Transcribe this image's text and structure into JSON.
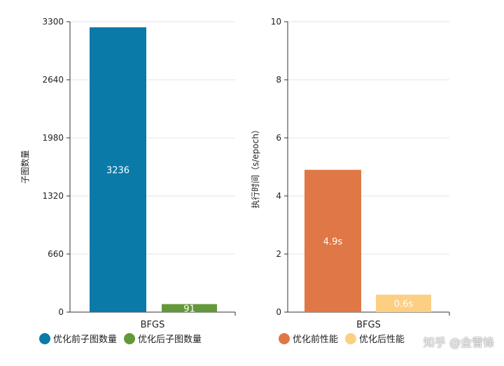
{
  "chart_data": [
    {
      "type": "bar",
      "categories": [
        "BFGS"
      ],
      "series": [
        {
          "name": "优化前子图数量",
          "values": [
            3236
          ],
          "label": "3236",
          "color": "#0a7aa8"
        },
        {
          "name": "优化后子图数量",
          "values": [
            91
          ],
          "label": "91",
          "color": "#63983a"
        }
      ],
      "ylabel": "子图数量",
      "ylim": [
        0,
        3300
      ],
      "yticks": [
        "0",
        "660",
        "1320",
        "1980",
        "2640",
        "3300"
      ],
      "grid": true,
      "legend": "bottom"
    },
    {
      "type": "bar",
      "categories": [
        "BFGS"
      ],
      "series": [
        {
          "name": "优化前性能",
          "values": [
            4.9
          ],
          "label": "4.9s",
          "color": "#e07746"
        },
        {
          "name": "优化后性能",
          "values": [
            0.6
          ],
          "label": "0.6s",
          "color": "#fccf82"
        }
      ],
      "ylabel": "执行时间（s/epoch）",
      "ylim": [
        0,
        10
      ],
      "yticks": [
        "0",
        "2",
        "4",
        "6",
        "8",
        "10"
      ],
      "grid": true,
      "legend": "bottom"
    }
  ],
  "watermark": "知乎 @金雪锋"
}
